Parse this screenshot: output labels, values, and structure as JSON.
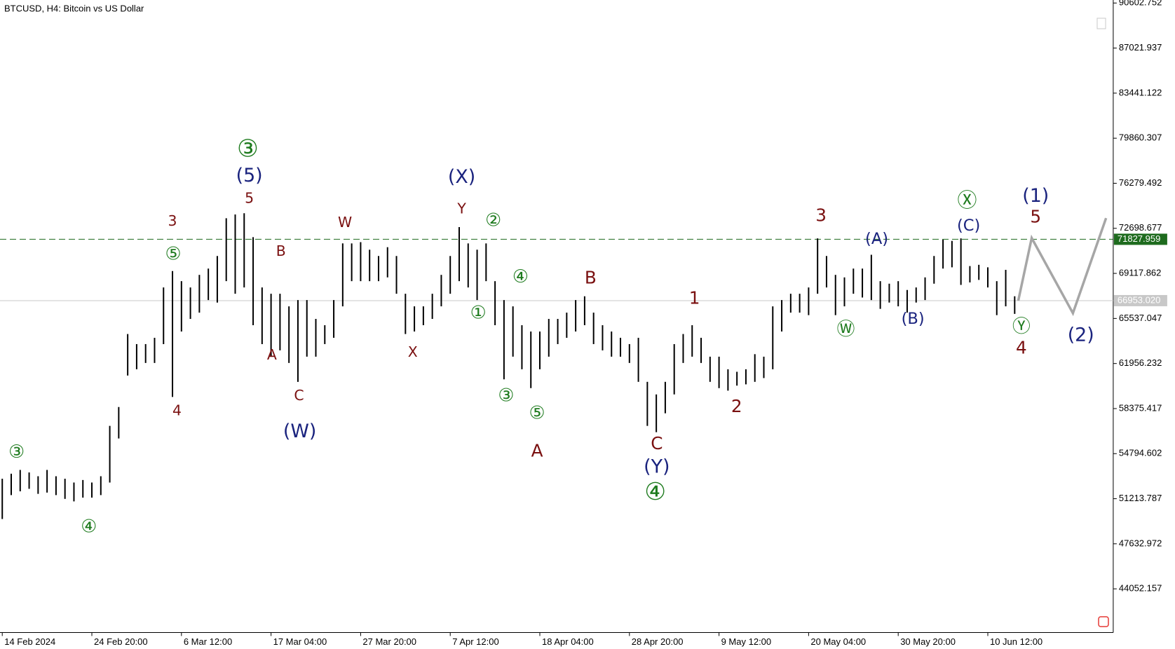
{
  "chart_data": {
    "type": "ohlc",
    "title": "BTCUSD, H4:  Bitcoin vs US Dollar",
    "color": "#000000",
    "categories": [
      "14 Feb 2024",
      null,
      null,
      null,
      null,
      null,
      null,
      null,
      null,
      null,
      "24 Feb 20:00",
      null,
      null,
      null,
      null,
      null,
      null,
      null,
      null,
      null,
      "6 Mar 12:00",
      null,
      null,
      null,
      null,
      null,
      null,
      null,
      null,
      null,
      "17 Mar 04:00",
      null,
      null,
      null,
      null,
      null,
      null,
      null,
      null,
      null,
      "27 Mar 20:00",
      null,
      null,
      null,
      null,
      null,
      null,
      null,
      null,
      null,
      "7 Apr 12:00",
      null,
      null,
      null,
      null,
      null,
      null,
      null,
      null,
      null,
      "18 Apr 04:00",
      null,
      null,
      null,
      null,
      null,
      null,
      null,
      null,
      null,
      "28 Apr 20:00",
      null,
      null,
      null,
      null,
      null,
      null,
      null,
      null,
      null,
      "9 May 12:00",
      null,
      null,
      null,
      null,
      null,
      null,
      null,
      null,
      null,
      "20 May 04:00",
      null,
      null,
      null,
      null,
      null,
      null,
      null,
      null,
      null,
      "30 May 20:00",
      null,
      null,
      null,
      null,
      null,
      null,
      null,
      null,
      null,
      "10 Jun 12:00",
      null,
      null,
      null,
      null,
      null,
      null,
      null,
      null,
      null,
      null,
      null,
      null,
      null
    ],
    "high": [
      52800,
      53200,
      53500,
      53300,
      53000,
      53500,
      53000,
      52800,
      52500,
      52700,
      52500,
      53000,
      57000,
      58500,
      64300,
      63500,
      63500,
      64000,
      68000,
      69300,
      68500,
      68000,
      69000,
      69500,
      70500,
      73500,
      73800,
      73900,
      72000,
      68000,
      67500,
      67500,
      66500,
      67000,
      67000,
      65500,
      65000,
      67000,
      71500,
      71500,
      71600,
      71000,
      70500,
      71200,
      70500,
      67500,
      66500,
      66500,
      67500,
      69000,
      70500,
      72800,
      71500,
      71000,
      71500,
      68500,
      67000,
      66500,
      65000,
      64500,
      64500,
      65500,
      65500,
      66000,
      67000,
      67300,
      66000,
      65000,
      64500,
      64000,
      63500,
      64000,
      60500,
      59500,
      60500,
      63500,
      64300,
      65000,
      64000,
      62500,
      62500,
      61500,
      61300,
      61500,
      62700,
      62500,
      66500,
      67000,
      67500,
      67500,
      68000,
      71900,
      70500,
      69000,
      68800,
      69500,
      69500,
      70600,
      68500,
      68300,
      68500,
      67800,
      68000,
      68800,
      70500,
      71800,
      71700,
      71900,
      69700,
      69800,
      69600,
      68500,
      69400,
      67300,
      null,
      null,
      null,
      null,
      null,
      null,
      null,
      null,
      null,
      null
    ],
    "low": [
      49600,
      51500,
      51800,
      52000,
      51600,
      51700,
      51500,
      51200,
      51000,
      51300,
      51300,
      51500,
      52500,
      56000,
      61000,
      61500,
      62000,
      62000,
      63500,
      59300,
      64500,
      65500,
      66000,
      67000,
      66800,
      68500,
      67500,
      68000,
      65000,
      63500,
      62500,
      63000,
      62000,
      60500,
      62500,
      62500,
      63500,
      64000,
      66500,
      68500,
      68500,
      68500,
      68500,
      68800,
      67500,
      64300,
      64500,
      65000,
      65500,
      66500,
      67500,
      68500,
      68000,
      67000,
      68500,
      65000,
      60700,
      62500,
      61500,
      60000,
      61500,
      62500,
      63500,
      64000,
      64500,
      65000,
      63500,
      63000,
      62500,
      62500,
      62000,
      60500,
      57000,
      56500,
      58000,
      59500,
      62000,
      62500,
      62000,
      60500,
      60000,
      59800,
      60200,
      60300,
      60500,
      60800,
      61500,
      64500,
      66000,
      66000,
      65800,
      67500,
      68000,
      65800,
      66500,
      67500,
      67200,
      67000,
      66300,
      66800,
      66500,
      66000,
      66800,
      67000,
      68300,
      69500,
      69600,
      68200,
      68400,
      68600,
      68000,
      65800,
      66500,
      65900,
      null,
      null,
      null,
      null,
      null,
      null,
      null,
      null,
      null,
      null
    ],
    "ylim": [
      40582,
      90842
    ],
    "yticks": [
      90602.752,
      87021.937,
      83441.122,
      79860.307,
      76279.492,
      72698.677,
      69117.862,
      65537.047,
      61956.232,
      58375.417,
      54794.602,
      51213.787,
      47632.972,
      44052.157
    ],
    "hlines": [
      {
        "value": 71827.959,
        "color": "#1e6b1e",
        "dashed": true
      },
      {
        "value": 66953.02,
        "label": "66953.020",
        "color": "#c8c8c8",
        "dashed": false
      }
    ],
    "forecast": {
      "x": [
        113.4,
        114.9,
        119.5,
        123.2
      ],
      "values": [
        66953,
        71929,
        65954,
        73512
      ],
      "color": "#a6a6a6"
    },
    "annotations": [
      {
        "text": "③",
        "color": "#1e7b1e"
      },
      {
        "text": "④",
        "color": "#1e7b1e"
      },
      {
        "text": "⑤",
        "color": "#1e7b1e"
      },
      {
        "text": "③",
        "color": "#1e7b1e"
      },
      {
        "text": "②",
        "color": "#1e7b1e"
      },
      {
        "text": "④",
        "color": "#1e7b1e"
      },
      {
        "text": "①",
        "color": "#1e7b1e"
      },
      {
        "text": "③",
        "color": "#1e7b1e"
      },
      {
        "text": "⑤",
        "color": "#1e7b1e"
      },
      {
        "text": "④",
        "color": "#1e7b1e"
      },
      {
        "text": "Ⓦ",
        "color": "#1e7b1e"
      },
      {
        "text": "Ⓧ",
        "color": "#1e7b1e"
      },
      {
        "text": "Ⓨ",
        "color": "#1e7b1e"
      },
      {
        "text": "(5)",
        "color": "#1a237e"
      },
      {
        "text": "(X)",
        "color": "#1a237e"
      },
      {
        "text": "(W)",
        "color": "#1a237e"
      },
      {
        "text": "(Y)",
        "color": "#1a237e"
      },
      {
        "text": "(A)",
        "color": "#1a237e"
      },
      {
        "text": "(B)",
        "color": "#1a237e"
      },
      {
        "text": "(C)",
        "color": "#1a237e"
      },
      {
        "text": "(1)",
        "color": "#1a237e"
      },
      {
        "text": "(2)",
        "color": "#1a237e"
      },
      {
        "text": "3",
        "color": "#7a1010"
      },
      {
        "text": "5",
        "color": "#7a1010"
      },
      {
        "text": "4",
        "color": "#7a1010"
      },
      {
        "text": "B",
        "color": "#7a1010"
      },
      {
        "text": "A",
        "color": "#7a1010"
      },
      {
        "text": "C",
        "color": "#7a1010"
      },
      {
        "text": "W",
        "color": "#7a1010"
      },
      {
        "text": "X",
        "color": "#7a1010"
      },
      {
        "text": "Y",
        "color": "#7a1010"
      },
      {
        "text": "B",
        "color": "#7a1010"
      },
      {
        "text": "A",
        "color": "#7a1010"
      },
      {
        "text": "C",
        "color": "#7a1010"
      },
      {
        "text": "1",
        "color": "#7a1010"
      },
      {
        "text": "2",
        "color": "#7a1010"
      },
      {
        "text": "3",
        "color": "#7a1010"
      },
      {
        "text": "5",
        "color": "#7a1010"
      },
      {
        "text": "4",
        "color": "#7a1010"
      }
    ]
  }
}
